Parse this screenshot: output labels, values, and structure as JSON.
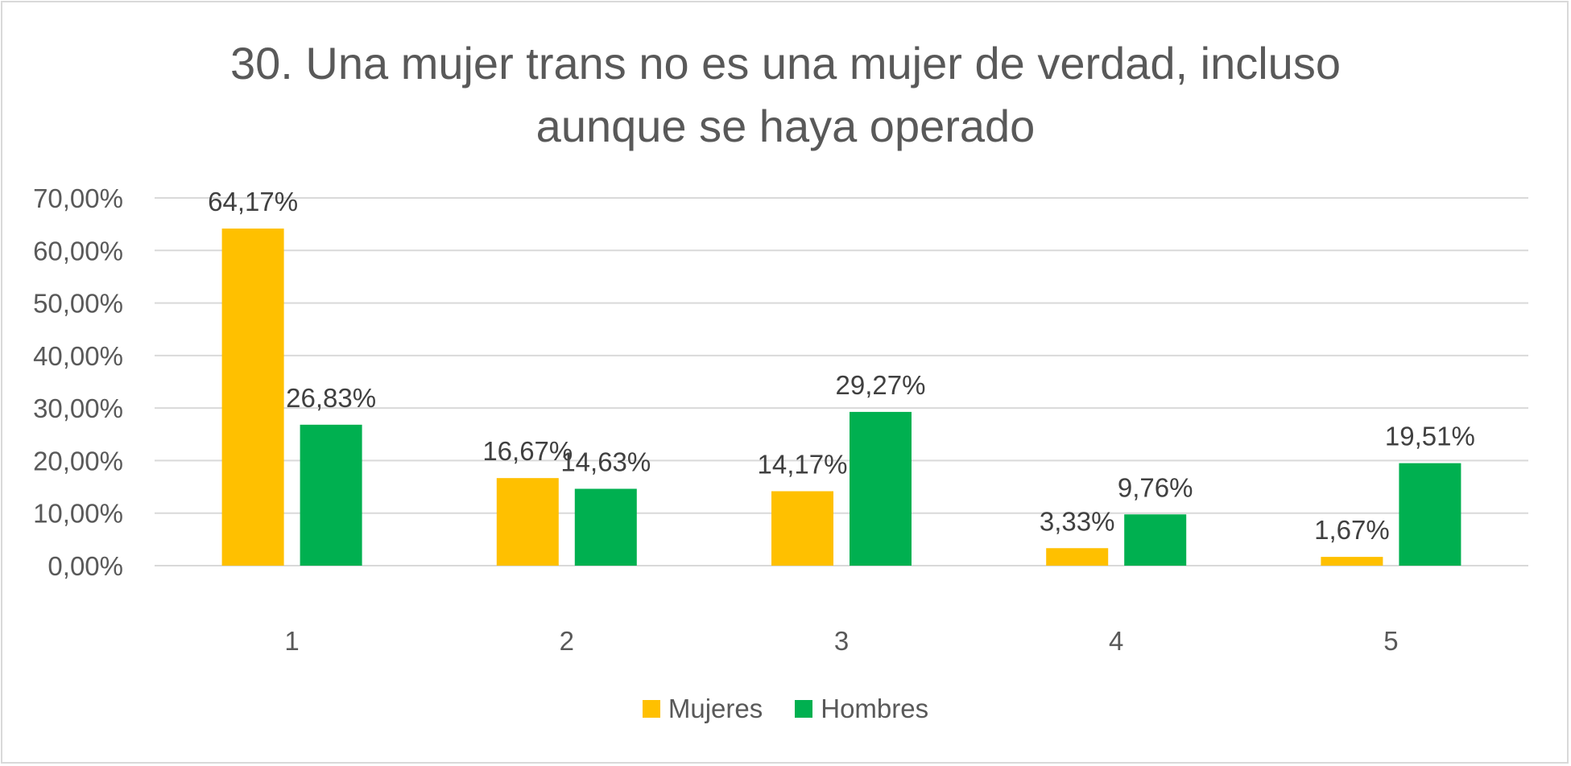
{
  "chart_data": {
    "type": "bar",
    "title_lines": [
      "30. Una mujer trans no es una mujer de verdad, incluso",
      "aunque se haya operado"
    ],
    "categories": [
      "1",
      "2",
      "3",
      "4",
      "5"
    ],
    "series": [
      {
        "name": "Mujeres",
        "color": "#FFC000",
        "values": [
          64.17,
          16.67,
          14.17,
          3.33,
          1.67
        ],
        "labels": [
          "64,17%",
          "16,67%",
          "14,17%",
          "3,33%",
          "1,67%"
        ]
      },
      {
        "name": "Hombres",
        "color": "#00B050",
        "values": [
          26.83,
          14.63,
          29.27,
          9.76,
          19.51
        ],
        "labels": [
          "26,83%",
          "14,63%",
          "29,27%",
          "9,76%",
          "19,51%"
        ]
      }
    ],
    "ylim": [
      0,
      70
    ],
    "yticks": [
      0,
      10,
      20,
      30,
      40,
      50,
      60,
      70
    ],
    "ytick_labels": [
      "0,00%",
      "10,00%",
      "20,00%",
      "30,00%",
      "40,00%",
      "50,00%",
      "60,00%",
      "70,00%"
    ],
    "xlabel": "",
    "ylabel": "",
    "grid": true,
    "legend_position": "bottom"
  }
}
